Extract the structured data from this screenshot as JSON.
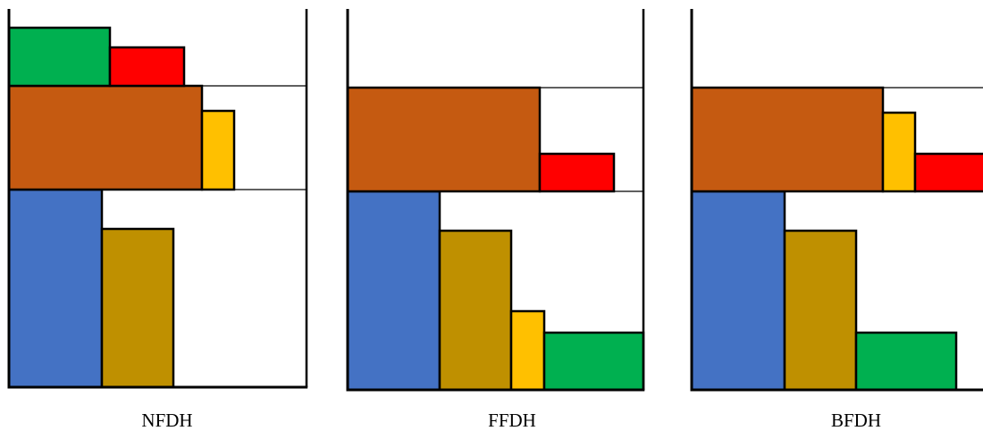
{
  "colors": {
    "blue": "#4472C4",
    "olive": "#BF9000",
    "brown": "#C55A11",
    "yellow": "#FFC000",
    "red": "#FF0000",
    "green": "#00B050",
    "outline": "#000000"
  },
  "panels": [
    {
      "id": "nfdh",
      "label": "NFDH",
      "rectangles": [
        {
          "name": "blue-rect",
          "color": "blue"
        },
        {
          "name": "olive-rect",
          "color": "olive"
        },
        {
          "name": "brown-rect",
          "color": "brown"
        },
        {
          "name": "yellow-rect",
          "color": "yellow"
        },
        {
          "name": "green-rect",
          "color": "green"
        },
        {
          "name": "red-rect",
          "color": "red"
        }
      ]
    },
    {
      "id": "ffdh",
      "label": "FFDH",
      "rectangles": [
        {
          "name": "blue-rect",
          "color": "blue"
        },
        {
          "name": "olive-rect",
          "color": "olive"
        },
        {
          "name": "yellow-rect",
          "color": "yellow"
        },
        {
          "name": "green-rect",
          "color": "green"
        },
        {
          "name": "brown-rect",
          "color": "brown"
        },
        {
          "name": "red-rect",
          "color": "red"
        }
      ]
    },
    {
      "id": "bfdh",
      "label": "BFDH",
      "rectangles": [
        {
          "name": "blue-rect",
          "color": "blue"
        },
        {
          "name": "olive-rect",
          "color": "olive"
        },
        {
          "name": "green-rect",
          "color": "green"
        },
        {
          "name": "brown-rect",
          "color": "brown"
        },
        {
          "name": "yellow-rect",
          "color": "yellow"
        },
        {
          "name": "red-rect",
          "color": "red"
        }
      ]
    }
  ]
}
